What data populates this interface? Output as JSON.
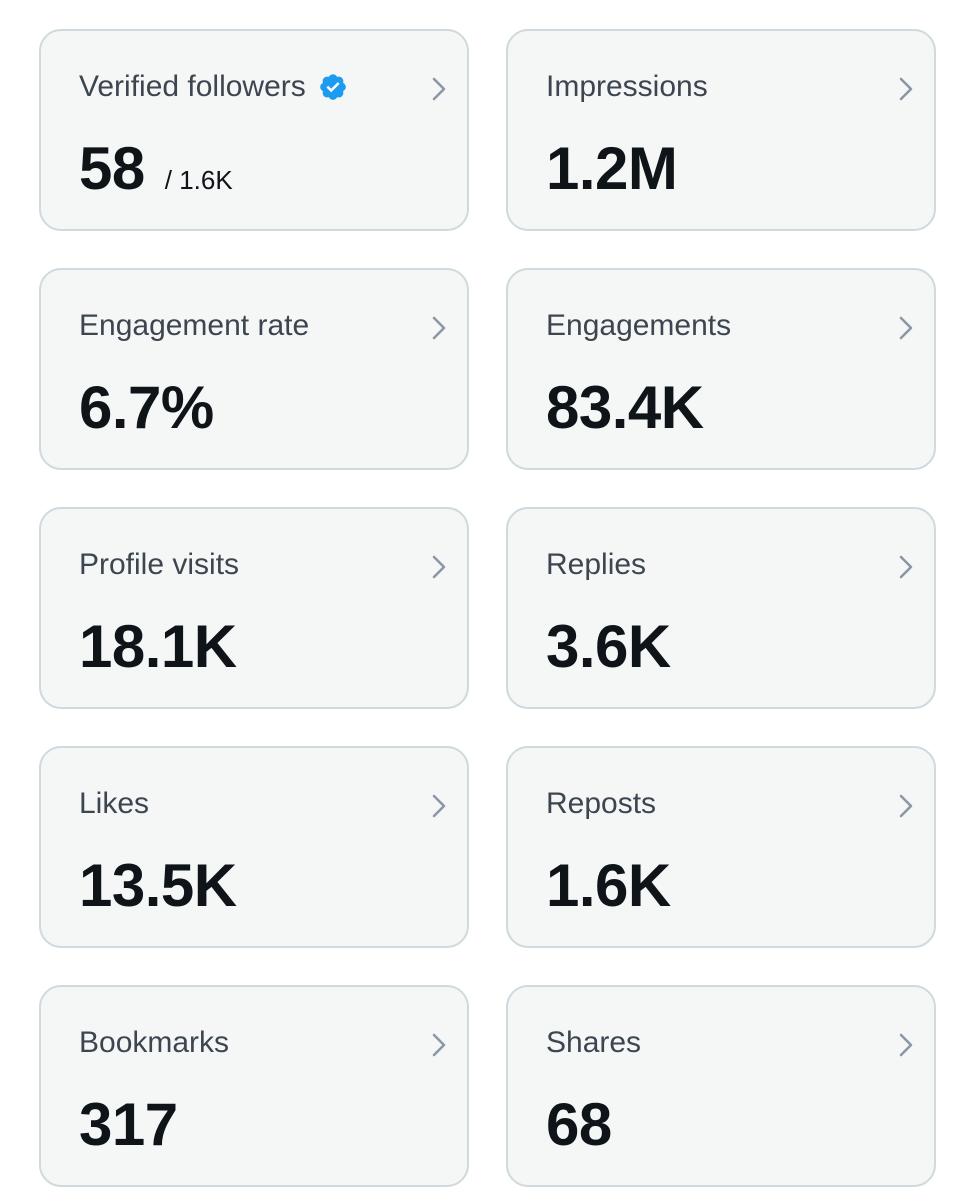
{
  "metrics": [
    {
      "label": "Verified followers",
      "value": "58",
      "subvalue": "/ 1.6K",
      "verified": true
    },
    {
      "label": "Impressions",
      "value": "1.2M"
    },
    {
      "label": "Engagement rate",
      "value": "6.7%"
    },
    {
      "label": "Engagements",
      "value": "83.4K"
    },
    {
      "label": "Profile visits",
      "value": "18.1K"
    },
    {
      "label": "Replies",
      "value": "3.6K"
    },
    {
      "label": "Likes",
      "value": "13.5K"
    },
    {
      "label": "Reposts",
      "value": "1.6K"
    },
    {
      "label": "Bookmarks",
      "value": "317"
    },
    {
      "label": "Shares",
      "value": "68"
    }
  ],
  "icons": {
    "chevron": "chevron-right-icon",
    "verified": "verified-badge-icon"
  },
  "colors": {
    "card_background": "#f5f7f7",
    "card_border": "#cfd9de",
    "label_text": "#3d4650",
    "value_text": "#0f1419",
    "chevron": "#8b98a5",
    "verified_badge": "#1d9bf0"
  }
}
